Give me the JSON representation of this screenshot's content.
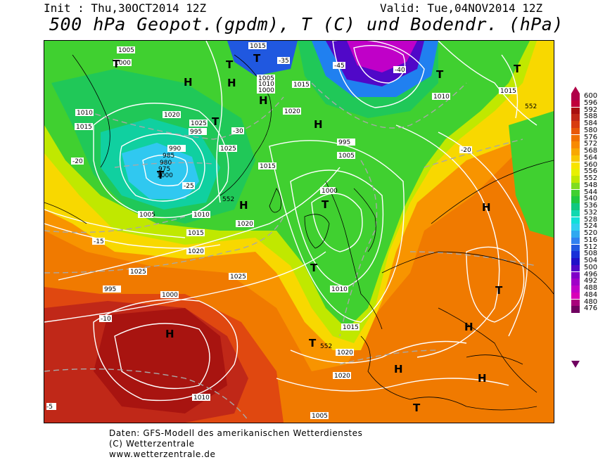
{
  "header": {
    "init": "Init : Thu,30OCT2014 12Z",
    "valid": "Valid: Tue,04NOV2014 12Z",
    "title": "500 hPa Geopot.(gpdm), T (C) und Bodendr. (hPa)"
  },
  "legend": {
    "values": [
      "600",
      "596",
      "592",
      "588",
      "584",
      "580",
      "576",
      "572",
      "568",
      "564",
      "560",
      "556",
      "552",
      "548",
      "544",
      "540",
      "536",
      "532",
      "528",
      "524",
      "520",
      "516",
      "512",
      "508",
      "504",
      "500",
      "496",
      "492",
      "488",
      "484",
      "480",
      "476"
    ],
    "colors": [
      "#b00048",
      "#c0003a",
      "#a81010",
      "#c02818",
      "#d83c10",
      "#e85808",
      "#f07000",
      "#f88a00",
      "#f8a800",
      "#f8c800",
      "#f8e400",
      "#e8f000",
      "#c0e800",
      "#80dc20",
      "#40d030",
      "#20c840",
      "#10c880",
      "#10d8b0",
      "#10e0d8",
      "#30d0f0",
      "#30a8f0",
      "#3080f0",
      "#2058e0",
      "#1830d8",
      "#2010c8",
      "#5008c8",
      "#8000c8",
      "#a000c8",
      "#c000c8",
      "#d800b8",
      "#a8007c",
      "#700060"
    ]
  },
  "map": {
    "pressure_labels": [
      "1005",
      "1000",
      "1010",
      "1015",
      "1020",
      "1025",
      "995",
      "990",
      "985",
      "980",
      "975",
      "1000",
      "1005",
      "1010",
      "1015",
      "1020",
      "1025",
      "995",
      "1000",
      "1010",
      "1015",
      "1005",
      "1010",
      "1000",
      "1015",
      "1020",
      "1025",
      "1015",
      "1020",
      "1025",
      "1000",
      "995",
      "1005",
      "1010",
      "1015",
      "1020",
      "1020",
      "1005",
      "1010",
      "1015"
    ],
    "temp_labels": [
      "-20",
      "-25",
      "-30",
      "-35",
      "-40",
      "-45",
      "-20",
      "-15",
      "-10",
      "-5"
    ],
    "gpdm_labels": [
      "552",
      "552",
      "552"
    ],
    "highs": [
      "H",
      "H",
      "H",
      "H",
      "H",
      "H",
      "H",
      "H",
      "H",
      "H"
    ],
    "lows": [
      "T",
      "T",
      "T",
      "T",
      "T",
      "T",
      "T",
      "T",
      "T",
      "T",
      "T",
      "T"
    ]
  },
  "footer": {
    "line1": "Daten: GFS-Modell des amerikanischen Wetterdienstes",
    "line2": "(C) Wetterzentrale",
    "line3": "www.wetterzentrale.de"
  }
}
